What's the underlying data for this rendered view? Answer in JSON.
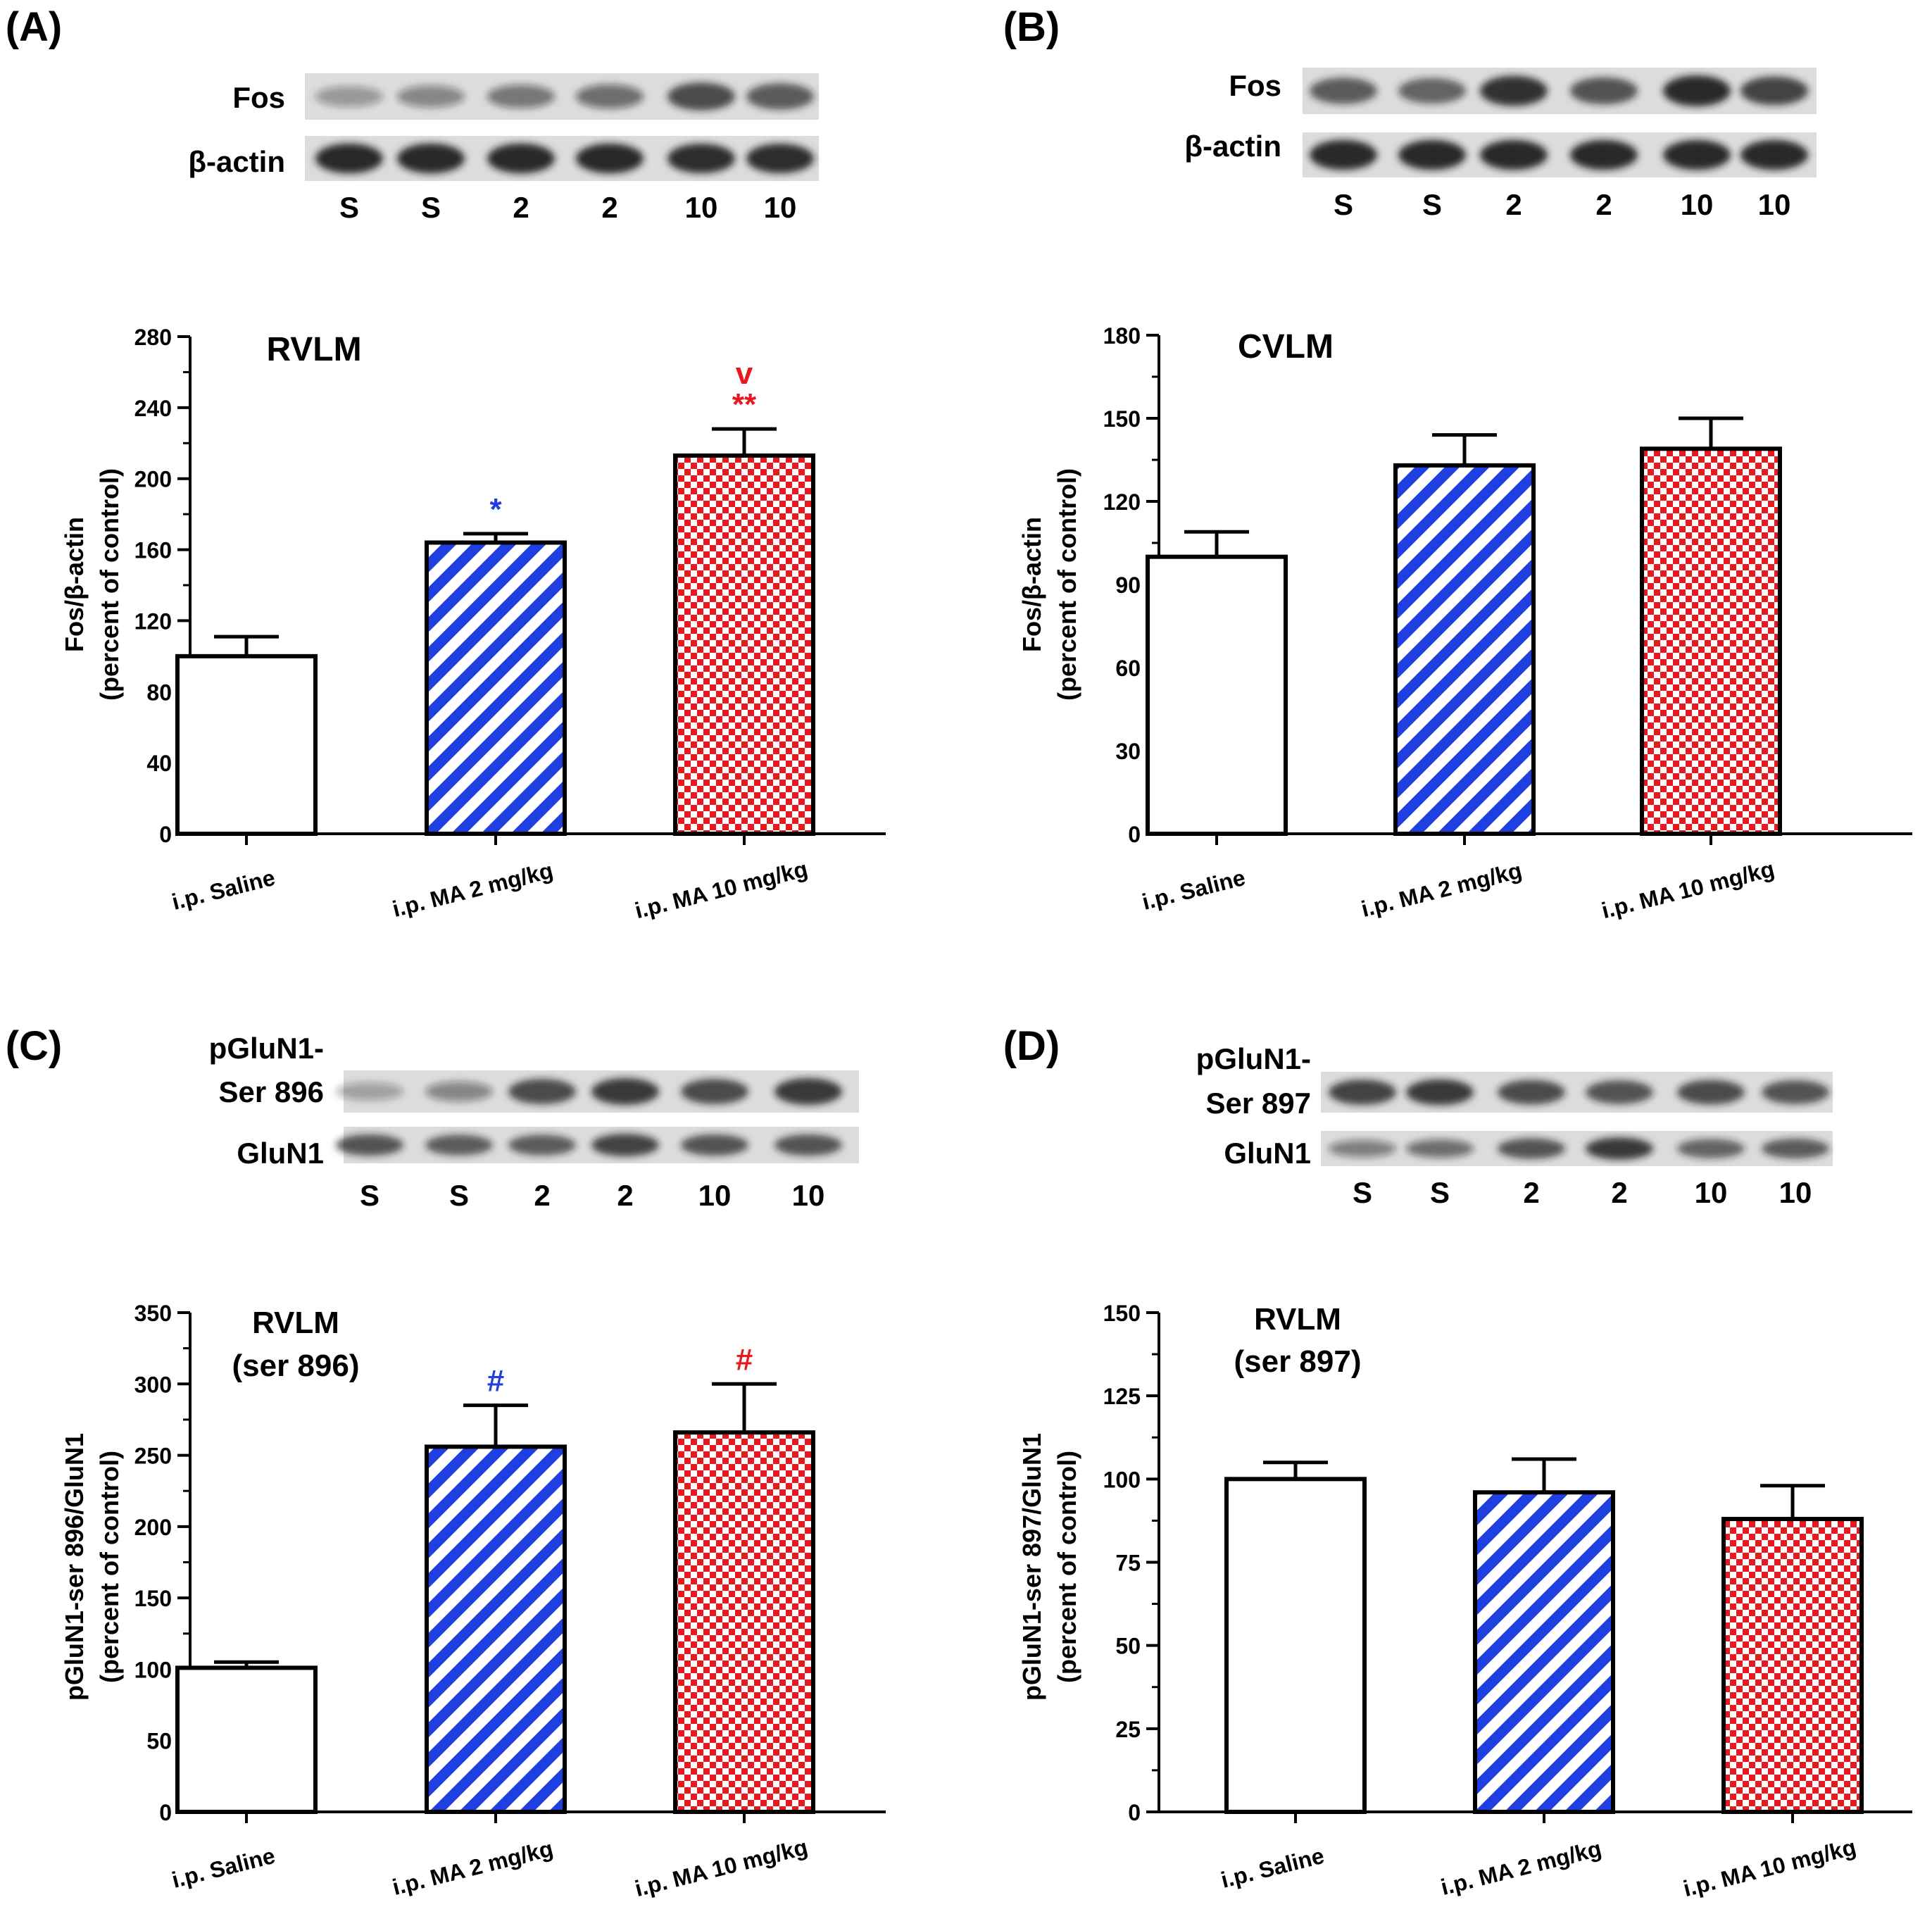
{
  "figure": {
    "panels": [
      {
        "id": "A",
        "label": "(A)",
        "blot": {
          "rows": [
            {
              "name": "Fos",
              "intensities": [
                0.25,
                0.35,
                0.45,
                0.5,
                0.75,
                0.65
              ]
            },
            {
              "name": "β-actin",
              "intensities": [
                0.95,
                0.95,
                0.95,
                0.95,
                0.92,
                0.92
              ]
            }
          ],
          "lanes": [
            "S",
            "S",
            "2",
            "2",
            "10",
            "10"
          ]
        }
      },
      {
        "id": "B",
        "label": "(B)",
        "blot": {
          "rows": [
            {
              "name": "Fos",
              "intensities": [
                0.65,
                0.6,
                0.9,
                0.7,
                0.95,
                0.8
              ]
            },
            {
              "name": "β-actin",
              "intensities": [
                0.95,
                0.95,
                0.95,
                0.95,
                0.95,
                0.95
              ]
            }
          ],
          "lanes": [
            "S",
            "S",
            "2",
            "2",
            "10",
            "10"
          ]
        }
      },
      {
        "id": "C",
        "label": "(C)",
        "blot": {
          "rows": [
            {
              "name": "pGluN1- Ser 896",
              "intensities": [
                0.2,
                0.35,
                0.75,
                0.85,
                0.75,
                0.85
              ]
            },
            {
              "name": "GluN1",
              "intensities": [
                0.7,
                0.65,
                0.65,
                0.8,
                0.7,
                0.7
              ]
            }
          ],
          "lanes": [
            "S",
            "S",
            "2",
            "2",
            "10",
            "10"
          ]
        }
      },
      {
        "id": "D",
        "label": "(D)",
        "blot": {
          "rows": [
            {
              "name": "pGluN1- Ser 897",
              "intensities": [
                0.8,
                0.85,
                0.75,
                0.7,
                0.75,
                0.7
              ]
            },
            {
              "name": "GluN1",
              "intensities": [
                0.4,
                0.5,
                0.7,
                0.85,
                0.6,
                0.65
              ]
            }
          ],
          "lanes": [
            "S",
            "S",
            "2",
            "2",
            "10",
            "10"
          ]
        }
      }
    ]
  },
  "chart_data": [
    {
      "panel": "A",
      "type": "bar",
      "title": "RVLM",
      "ylabel": "Fos/β-actin (percent of control)",
      "xlabel": "",
      "ylim": [
        0,
        280
      ],
      "yticks": [
        0,
        40,
        80,
        120,
        160,
        200,
        240,
        280
      ],
      "categories": [
        "i.p. Saline",
        "i.p. MA 2 mg/kg",
        "i.p. MA 10 mg/kg"
      ],
      "values": [
        100,
        164,
        213
      ],
      "errors": [
        11,
        5,
        15
      ],
      "fills": [
        "white",
        "stripes-blue",
        "checks-red"
      ],
      "annotations": [
        {
          "bar": 1,
          "lines": [
            {
              "text": "*",
              "color": "#1f3fe0"
            }
          ]
        },
        {
          "bar": 2,
          "lines": [
            {
              "text": "v",
              "color": "#e8181f"
            },
            {
              "text": "**",
              "color": "#e8181f"
            }
          ]
        }
      ]
    },
    {
      "panel": "B",
      "type": "bar",
      "title": "CVLM",
      "ylabel": "Fos/β-actin (percent of control)",
      "xlabel": "",
      "ylim": [
        0,
        180
      ],
      "yticks": [
        0,
        30,
        60,
        90,
        120,
        150,
        180
      ],
      "categories": [
        "i.p. Saline",
        "i.p. MA 2 mg/kg",
        "i.p. MA 10 mg/kg"
      ],
      "values": [
        100,
        133,
        139
      ],
      "errors": [
        9,
        11,
        11
      ],
      "fills": [
        "white",
        "stripes-blue",
        "checks-red"
      ],
      "annotations": []
    },
    {
      "panel": "C",
      "type": "bar",
      "title": "RVLM (ser 896)",
      "ylabel": "pGluN1-ser 896/GluN1 (percent of control)",
      "xlabel": "",
      "ylim": [
        0,
        350
      ],
      "yticks": [
        0,
        50,
        100,
        150,
        200,
        250,
        300,
        350
      ],
      "categories": [
        "i.p. Saline",
        "i.p. MA 2 mg/kg",
        "i.p. MA 10 mg/kg"
      ],
      "values": [
        101,
        256,
        266
      ],
      "errors": [
        4,
        29,
        34
      ],
      "fills": [
        "white",
        "stripes-blue",
        "checks-red"
      ],
      "annotations": [
        {
          "bar": 1,
          "lines": [
            {
              "text": "#",
              "color": "#1f3fe0"
            }
          ]
        },
        {
          "bar": 2,
          "lines": [
            {
              "text": "#",
              "color": "#e8181f"
            }
          ]
        }
      ]
    },
    {
      "panel": "D",
      "type": "bar",
      "title": "RVLM (ser 897)",
      "ylabel": "pGluN1-ser 897/GluN1 (percent of control)",
      "xlabel": "",
      "ylim": [
        0,
        150
      ],
      "yticks": [
        0,
        25,
        50,
        75,
        100,
        125,
        150
      ],
      "categories": [
        "i.p. Saline",
        "i.p. MA 2 mg/kg",
        "i.p. MA 10 mg/kg"
      ],
      "values": [
        100,
        96,
        88
      ],
      "errors": [
        5,
        10,
        10
      ],
      "fills": [
        "white",
        "stripes-blue",
        "checks-red"
      ],
      "annotations": []
    }
  ],
  "colors": {
    "blue": "#1f3fe0",
    "red": "#e8181f",
    "axis": "#000000",
    "blot_bg": "#dcdcdc",
    "band": "#1a1a1a"
  }
}
